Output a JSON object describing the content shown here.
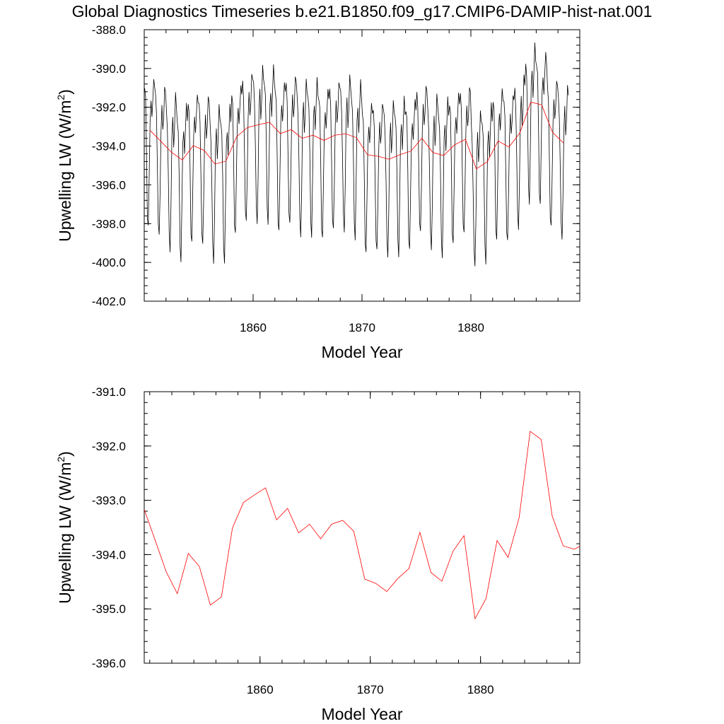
{
  "title": "Global Diagnostics Timeseries b.e21.B1850.f09_g17.CMIP6-DAMIP-hist-nat.001",
  "chart_data": [
    {
      "type": "line",
      "xlabel": "Model Year",
      "ylabel": "Upwelling LW (W/m",
      "ylabel_sup": "2",
      "ylabel_close": ")",
      "xlim": [
        1850,
        1890
      ],
      "ylim": [
        -402.0,
        -388.0
      ],
      "x_ticks": [
        1860,
        1870,
        1880
      ],
      "x_tick_labels": [
        "1860",
        "1870",
        "1880"
      ],
      "y_ticks": [
        -388.0,
        -390.0,
        -392.0,
        -394.0,
        -396.0,
        -398.0,
        -400.0,
        -402.0
      ],
      "y_tick_labels": [
        "-388.0",
        "-390.0",
        "-392.0",
        "-394.0",
        "-396.0",
        "-398.0",
        "-400.0",
        "-402.0"
      ],
      "grid": false,
      "series": [
        {
          "color": "#000000",
          "x_start": 1850.04,
          "x_step": 0.0833333,
          "monthly_pattern": [
            -391.3,
            -392.0,
            -394.5,
            -397.8,
            -398.5,
            -396.0,
            -392.8,
            -391.8,
            -393.0,
            -392.0,
            -390.6,
            -391.2
          ],
          "annual_means": [
            -393.17,
            -393.74,
            -394.32,
            -394.72,
            -393.98,
            -394.22,
            -394.93,
            -394.78,
            -393.51,
            -393.04,
            -392.9,
            -392.77,
            -393.36,
            -393.15,
            -393.6,
            -393.44,
            -393.71,
            -393.44,
            -393.37,
            -393.57,
            -394.45,
            -394.53,
            -394.68,
            -394.44,
            -394.26,
            -393.59,
            -394.33,
            -394.49,
            -393.94,
            -393.65,
            -395.18,
            -394.81,
            -393.74,
            -394.05,
            -393.32,
            -391.73,
            -391.88,
            -393.29,
            -393.84
          ]
        },
        {
          "color": "#ff0000",
          "x": [
            1850.5,
            1851.5,
            1852.5,
            1853.5,
            1854.5,
            1855.5,
            1856.5,
            1857.5,
            1858.5,
            1859.5,
            1860.5,
            1861.5,
            1862.5,
            1863.5,
            1864.5,
            1865.5,
            1866.5,
            1867.5,
            1868.5,
            1869.5,
            1870.5,
            1871.5,
            1872.5,
            1873.5,
            1874.5,
            1875.5,
            1876.5,
            1877.5,
            1878.5,
            1879.5,
            1880.5,
            1881.5,
            1882.5,
            1883.5,
            1884.5,
            1885.5,
            1886.5,
            1887.5,
            1888.5
          ],
          "y": [
            -393.17,
            -393.74,
            -394.32,
            -394.72,
            -393.98,
            -394.22,
            -394.93,
            -394.78,
            -393.51,
            -393.04,
            -392.9,
            -392.77,
            -393.36,
            -393.15,
            -393.6,
            -393.44,
            -393.71,
            -393.44,
            -393.37,
            -393.57,
            -394.45,
            -394.53,
            -394.68,
            -394.44,
            -394.26,
            -393.59,
            -394.33,
            -394.49,
            -393.94,
            -393.65,
            -395.18,
            -394.81,
            -393.74,
            -394.05,
            -393.32,
            -391.73,
            -391.88,
            -393.29,
            -393.84
          ]
        }
      ]
    },
    {
      "type": "line",
      "xlabel": "Model Year",
      "ylabel": "Upwelling LW (W/m",
      "ylabel_sup": "2",
      "ylabel_close": ")",
      "xlim": [
        1849.5,
        1889.0
      ],
      "ylim": [
        -396.0,
        -391.0
      ],
      "x_ticks": [
        1860,
        1870,
        1880
      ],
      "x_tick_labels": [
        "1860",
        "1870",
        "1880"
      ],
      "y_ticks": [
        -391.0,
        -392.0,
        -393.0,
        -394.0,
        -395.0,
        -396.0
      ],
      "y_tick_labels": [
        "-391.0",
        "-392.0",
        "-393.0",
        "-394.0",
        "-395.0",
        "-396.0"
      ],
      "grid": false,
      "series": [
        {
          "color": "#ff0000",
          "x": [
            1849.5,
            1850.5,
            1851.5,
            1852.5,
            1853.5,
            1854.5,
            1855.5,
            1856.5,
            1857.5,
            1858.5,
            1859.5,
            1860.5,
            1861.5,
            1862.5,
            1863.5,
            1864.5,
            1865.5,
            1866.5,
            1867.5,
            1868.5,
            1869.5,
            1870.5,
            1871.5,
            1872.5,
            1873.5,
            1874.5,
            1875.5,
            1876.5,
            1877.5,
            1878.5,
            1879.5,
            1880.5,
            1881.5,
            1882.5,
            1883.5,
            1884.5,
            1885.5,
            1886.5,
            1887.5,
            1888.5,
            1889.0
          ],
          "y": [
            -393.17,
            -393.74,
            -394.32,
            -394.72,
            -393.98,
            -394.22,
            -394.93,
            -394.78,
            -393.51,
            -393.04,
            -392.9,
            -392.77,
            -393.36,
            -393.15,
            -393.6,
            -393.44,
            -393.71,
            -393.44,
            -393.37,
            -393.57,
            -394.45,
            -394.53,
            -394.68,
            -394.44,
            -394.26,
            -393.59,
            -394.33,
            -394.49,
            -393.94,
            -393.65,
            -395.18,
            -394.81,
            -393.74,
            -394.05,
            -393.32,
            -391.73,
            -391.88,
            -393.29,
            -393.84,
            -393.9,
            -393.85
          ]
        }
      ]
    }
  ]
}
